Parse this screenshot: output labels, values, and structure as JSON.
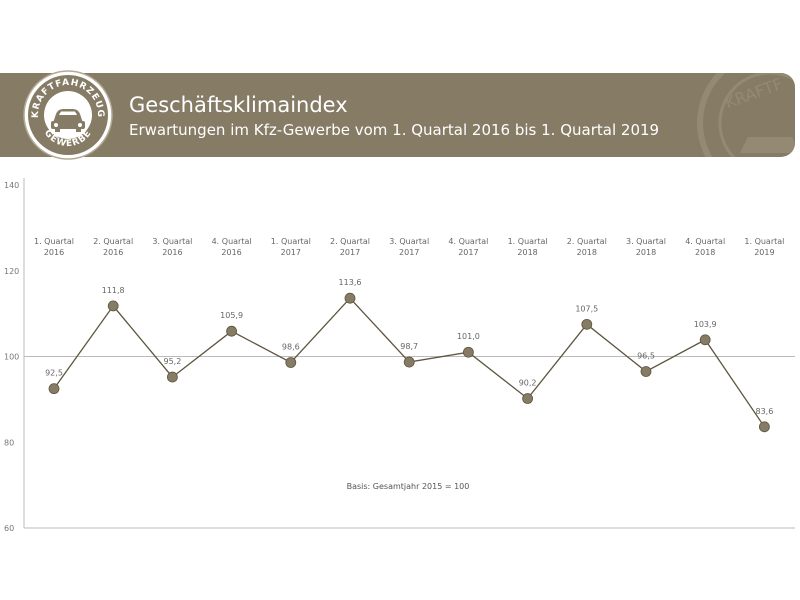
{
  "header": {
    "title": "Geschäftsklimaindex",
    "subtitle": "Erwartungen im Kfz-Gewerbe vom 1. Quartal 2016 bis 1. Quartal 2019",
    "logo_top_text": "KRAFTFAHRZEUG",
    "logo_bottom_text": "GEWERBE",
    "watermark_text": "KRAFTF"
  },
  "colors": {
    "banner": "#867c66",
    "line": "#5e5540",
    "marker": "#867c66",
    "axis": "#bbbbbb"
  },
  "chart_data": {
    "type": "line",
    "title": "Geschäftsklimaindex",
    "subtitle": "Erwartungen im Kfz-Gewerbe vom 1. Quartal 2016 bis 1. Quartal 2019",
    "categories": [
      [
        "1. Quartal",
        "2016"
      ],
      [
        "2. Quartal",
        "2016"
      ],
      [
        "3. Quartal",
        "2016"
      ],
      [
        "4. Quartal",
        "2016"
      ],
      [
        "1. Quartal",
        "2017"
      ],
      [
        "2. Quartal",
        "2017"
      ],
      [
        "3. Quartal",
        "2017"
      ],
      [
        "4. Quartal",
        "2017"
      ],
      [
        "1. Quartal",
        "2018"
      ],
      [
        "2. Quartal",
        "2018"
      ],
      [
        "3. Quartal",
        "2018"
      ],
      [
        "4. Quartal",
        "2018"
      ],
      [
        "1. Quartal",
        "2019"
      ]
    ],
    "values": [
      92.5,
      111.8,
      95.2,
      105.9,
      98.6,
      113.6,
      98.7,
      101.0,
      90.2,
      107.5,
      96.5,
      103.9,
      83.6
    ],
    "value_labels": [
      "92,5",
      "111,8",
      "95,2",
      "105,9",
      "98,6",
      "113,6",
      "98,7",
      "101,0",
      "90,2",
      "107,5",
      "96,5",
      "103,9",
      "83,6"
    ],
    "y_ticks": [
      140,
      120,
      100,
      80,
      60
    ],
    "ylim": [
      60,
      140
    ],
    "reference_line": 100,
    "annotation": "Basis: Gesamtjahr 2015 = 100",
    "xlabel": "",
    "ylabel": ""
  }
}
